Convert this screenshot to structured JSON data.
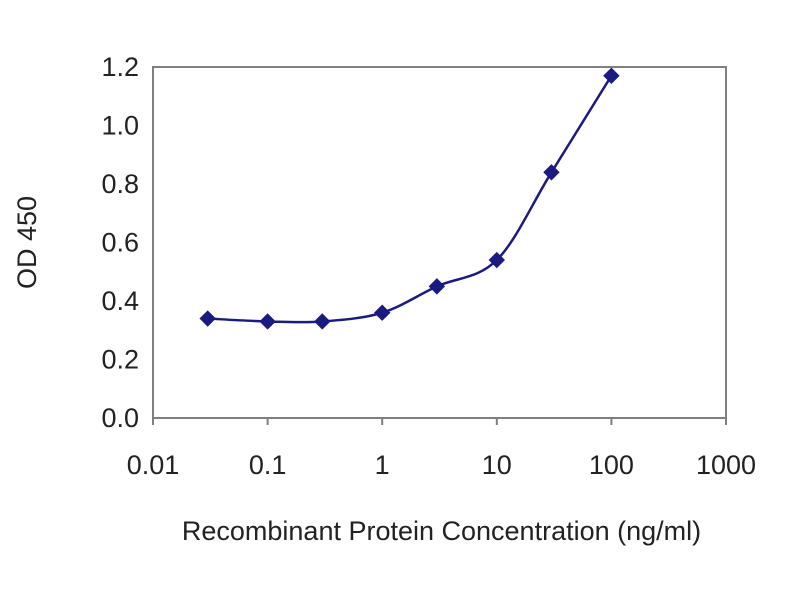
{
  "chart_data": {
    "type": "line",
    "title": "",
    "xlabel": "Recombinant Protein Concentration (ng/ml)",
    "ylabel": "OD 450",
    "x_scale": "log",
    "xlim": [
      0.01,
      1000
    ],
    "ylim": [
      0.0,
      1.2
    ],
    "x_ticks": [
      "0.01",
      "0.1",
      "1",
      "10",
      "100",
      "1000"
    ],
    "y_ticks": [
      "0.0",
      "0.2",
      "0.4",
      "0.6",
      "0.8",
      "1.0",
      "1.2"
    ],
    "grid": "horizontal",
    "legend": "none",
    "series": [
      {
        "x": [
          0.03,
          0.1,
          0.3,
          1,
          3,
          10,
          30,
          100
        ],
        "y": [
          0.34,
          0.33,
          0.33,
          0.36,
          0.45,
          0.54,
          0.84,
          1.17
        ],
        "color": "#1a1a80",
        "marker": "diamond"
      }
    ],
    "plot_background": "#ffffff",
    "gridline_color": "#000000",
    "frame_color": "#808080"
  }
}
